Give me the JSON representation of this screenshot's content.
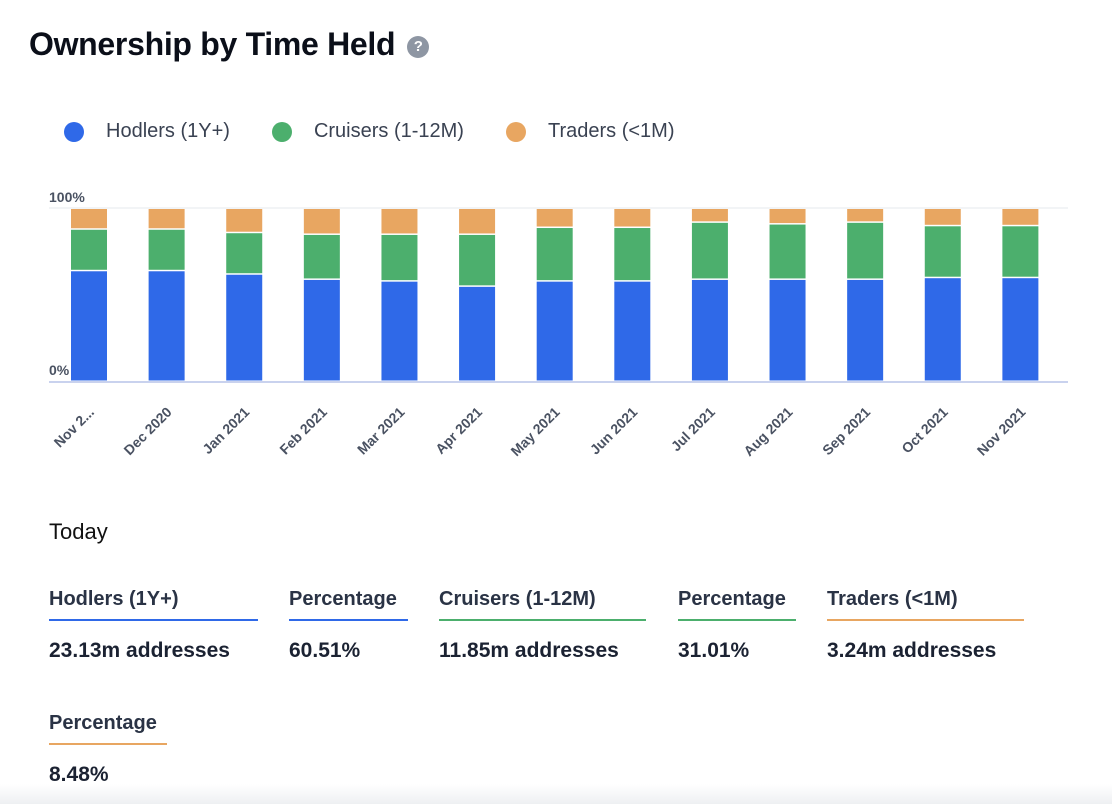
{
  "header": {
    "title": "Ownership by Time Held",
    "help_icon": "?"
  },
  "colors": {
    "hodlers": "#2f69e8",
    "cruisers": "#4caf6d",
    "traders": "#e8a661"
  },
  "chart_data": {
    "type": "bar",
    "stacked": true,
    "normalized": true,
    "title": "Ownership by Time Held",
    "y_tick_labels": [
      "100%",
      "0%"
    ],
    "ylim": [
      0,
      100
    ],
    "legend_position": "top-left",
    "categories": [
      "Nov 2...",
      "Dec 2020",
      "Jan 2021",
      "Feb 2021",
      "Mar 2021",
      "Apr 2021",
      "May 2021",
      "Jun 2021",
      "Jul 2021",
      "Aug 2021",
      "Sep 2021",
      "Oct 2021",
      "Nov 2021"
    ],
    "series": [
      {
        "name": "Hodlers (1Y+)",
        "color": "#2f69e8",
        "values": [
          64,
          64,
          62,
          59,
          58,
          55,
          58,
          58,
          59,
          59,
          59,
          60,
          60
        ]
      },
      {
        "name": "Cruisers (1-12M)",
        "color": "#4caf6d",
        "values": [
          24,
          24,
          24,
          26,
          27,
          30,
          31,
          31,
          33,
          32,
          33,
          30,
          30
        ]
      },
      {
        "name": "Traders (<1M)",
        "color": "#e8a661",
        "values": [
          12,
          12,
          14,
          15,
          15,
          15,
          11,
          11,
          8,
          9,
          8,
          10,
          10
        ]
      }
    ]
  },
  "today": {
    "label": "Today",
    "hodlers": {
      "label": "Hodlers (1Y+)",
      "value": "23.13m addresses"
    },
    "hodlers_pct": {
      "label": "Percentage",
      "value": "60.51%"
    },
    "cruisers": {
      "label": "Cruisers (1-12M)",
      "value": "11.85m addresses"
    },
    "cruisers_pct": {
      "label": "Percentage",
      "value": "31.01%"
    },
    "traders": {
      "label": "Traders (<1M)",
      "value": "3.24m addresses"
    },
    "traders_pct": {
      "label": "Percentage",
      "value": "8.48%"
    }
  }
}
